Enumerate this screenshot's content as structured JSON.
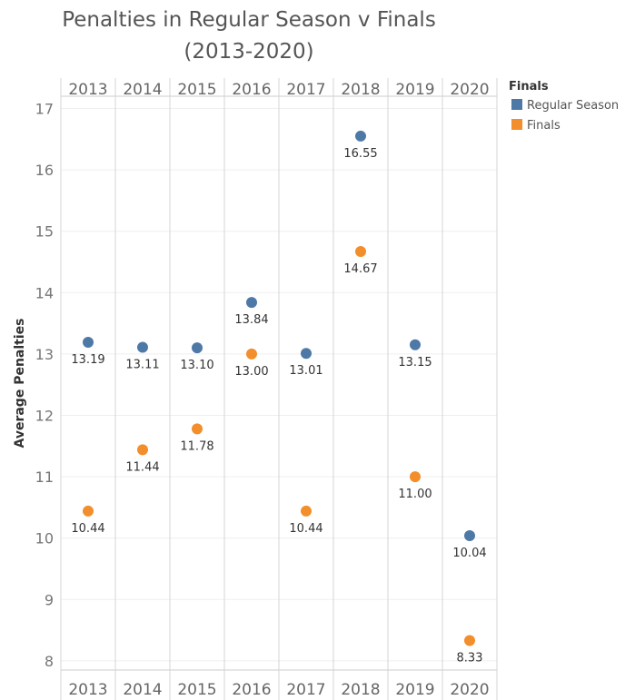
{
  "title_line1": "Penalties in Regular Season v Finals",
  "title_line2": "(2013-2020)",
  "legend": {
    "title": "Finals",
    "items": [
      {
        "label": "Regular Season",
        "color": "#4e79a7"
      },
      {
        "label": "Finals",
        "color": "#f28e2b"
      }
    ]
  },
  "chart_data": {
    "type": "scatter",
    "title": "Penalties in Regular Season v Finals (2013-2020)",
    "xlabel": "",
    "ylabel": "Average Penalties",
    "categories": [
      "2013",
      "2014",
      "2015",
      "2016",
      "2017",
      "2018",
      "2019",
      "2020"
    ],
    "yticks": [
      8,
      9,
      10,
      11,
      12,
      13,
      14,
      15,
      16,
      17
    ],
    "ylim": [
      7.85,
      17.2
    ],
    "grid": true,
    "legend_position": "right",
    "series": [
      {
        "name": "Regular Season",
        "color": "#4e79a7",
        "values": [
          13.19,
          13.11,
          13.1,
          13.84,
          13.01,
          16.55,
          13.15,
          10.04
        ]
      },
      {
        "name": "Finals",
        "color": "#f28e2b",
        "values": [
          10.44,
          11.44,
          11.78,
          13.0,
          10.44,
          14.67,
          11.0,
          8.33
        ]
      }
    ]
  }
}
